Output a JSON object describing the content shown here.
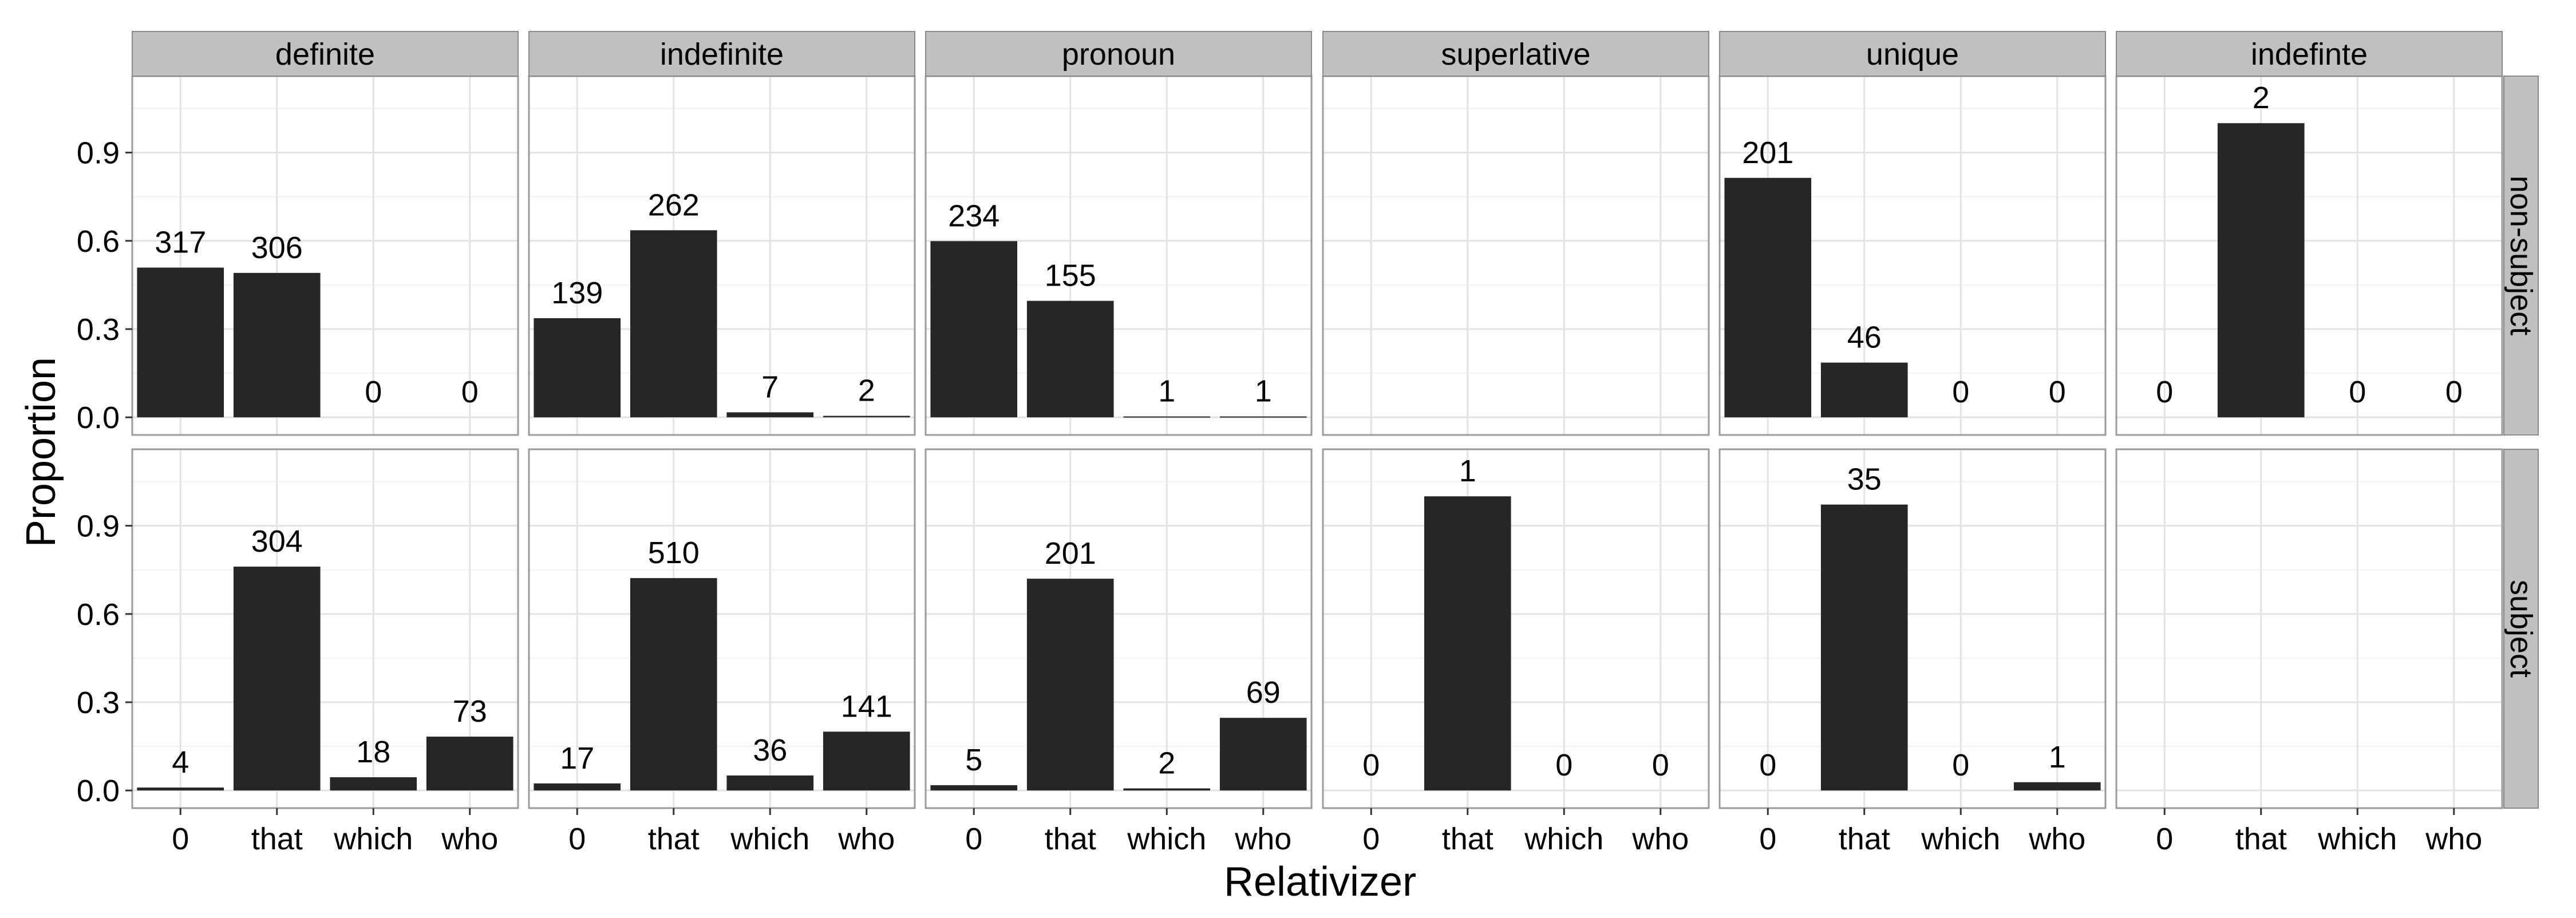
{
  "chart_data": {
    "type": "bar",
    "xlabel": "Relativizer",
    "ylabel": "Proportion",
    "categories": [
      "0",
      "that",
      "which",
      "who"
    ],
    "y_ticks": [
      "0.0",
      "0.3",
      "0.6",
      "0.9"
    ],
    "ylim": [
      -0.06,
      1.16
    ],
    "grid": true,
    "columns": [
      "definite",
      "indefinite",
      "pronoun",
      "superlative",
      "unique",
      "indefinte"
    ],
    "rows": [
      "non-subject",
      "subject"
    ],
    "panels": [
      {
        "column": "definite",
        "row": "non-subject",
        "values": [
          0.509,
          0.491,
          0.0,
          0.0
        ],
        "labels": [
          "317",
          "306",
          "0",
          "0"
        ]
      },
      {
        "column": "indefinite",
        "row": "non-subject",
        "values": [
          0.337,
          0.636,
          0.017,
          0.005
        ],
        "labels": [
          "139",
          "262",
          "7",
          "2"
        ]
      },
      {
        "column": "pronoun",
        "row": "non-subject",
        "values": [
          0.599,
          0.396,
          0.003,
          0.003
        ],
        "labels": [
          "234",
          "155",
          "1",
          "1"
        ]
      },
      {
        "column": "superlative",
        "row": "non-subject",
        "values": [],
        "labels": []
      },
      {
        "column": "unique",
        "row": "non-subject",
        "values": [
          0.814,
          0.186,
          0.0,
          0.0
        ],
        "labels": [
          "201",
          "46",
          "0",
          "0"
        ]
      },
      {
        "column": "indefinte",
        "row": "non-subject",
        "values": [
          0.0,
          1.0,
          0.0,
          0.0
        ],
        "labels": [
          "0",
          "2",
          "0",
          "0"
        ]
      },
      {
        "column": "definite",
        "row": "subject",
        "values": [
          0.01,
          0.761,
          0.045,
          0.183
        ],
        "labels": [
          "4",
          "304",
          "18",
          "73"
        ]
      },
      {
        "column": "indefinite",
        "row": "subject",
        "values": [
          0.024,
          0.722,
          0.051,
          0.2
        ],
        "labels": [
          "17",
          "510",
          "36",
          "141"
        ]
      },
      {
        "column": "pronoun",
        "row": "subject",
        "values": [
          0.018,
          0.72,
          0.007,
          0.247
        ],
        "labels": [
          "5",
          "201",
          "2",
          "69"
        ]
      },
      {
        "column": "superlative",
        "row": "subject",
        "values": [
          0.0,
          1.0,
          0.0,
          0.0
        ],
        "labels": [
          "0",
          "1",
          "0",
          "0"
        ]
      },
      {
        "column": "unique",
        "row": "subject",
        "values": [
          0.0,
          0.972,
          0.0,
          0.028
        ],
        "labels": [
          "0",
          "35",
          "0",
          "1"
        ]
      },
      {
        "column": "indefinte",
        "row": "subject",
        "values": [],
        "labels": []
      }
    ]
  },
  "colors": {
    "bar": "#262626",
    "strip_bg": "#c0c0c0",
    "strip_border": "#8a8a8a",
    "panel_border": "#9a9a9a",
    "grid_major": "#e3e3e3",
    "grid_minor": "#f2f2f2"
  }
}
